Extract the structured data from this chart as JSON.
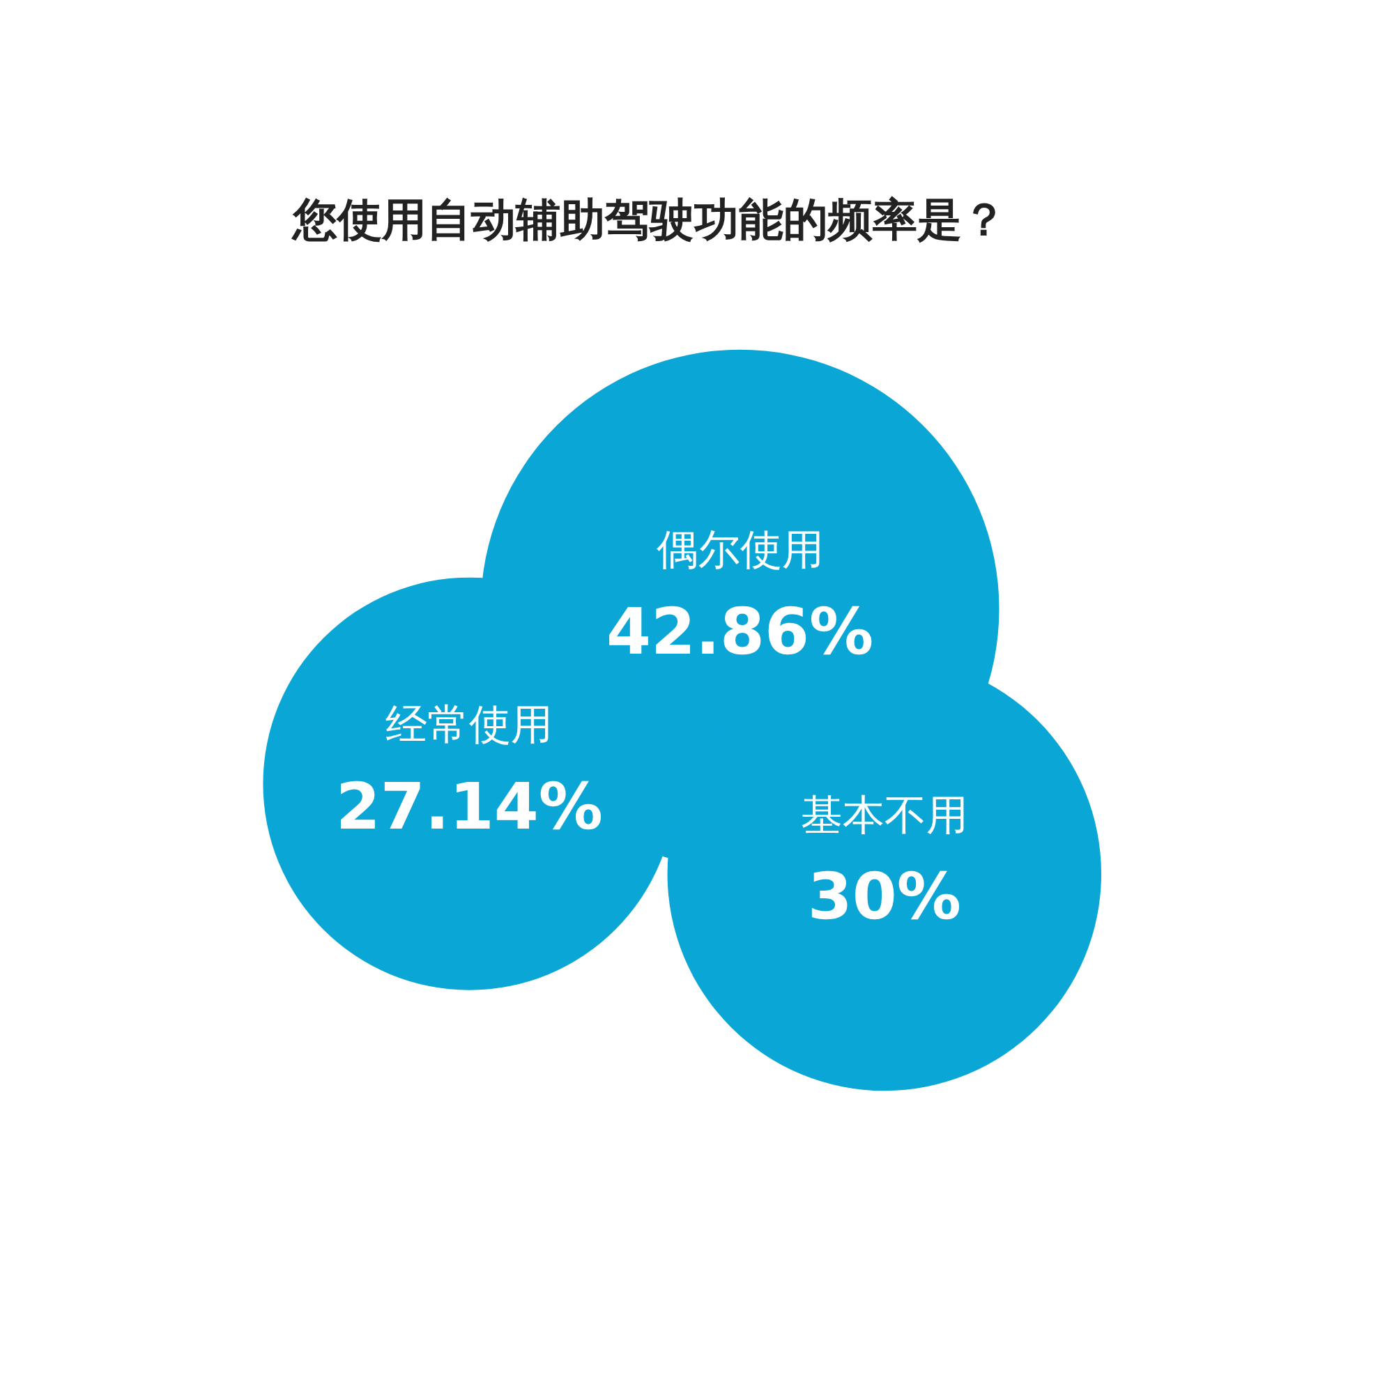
{
  "chart_data": {
    "type": "other",
    "title": "您使用自动辅助驾驶功能的频率是？",
    "categories": [
      "偶尔使用",
      "经常使用",
      "基本不用"
    ],
    "values": [
      42.86,
      27.14,
      30
    ],
    "value_labels": [
      "42.86%",
      "27.14%",
      "30%"
    ],
    "colors": [
      "#0aa6d6",
      "#0aa6d6",
      "#0aa6d6"
    ]
  }
}
